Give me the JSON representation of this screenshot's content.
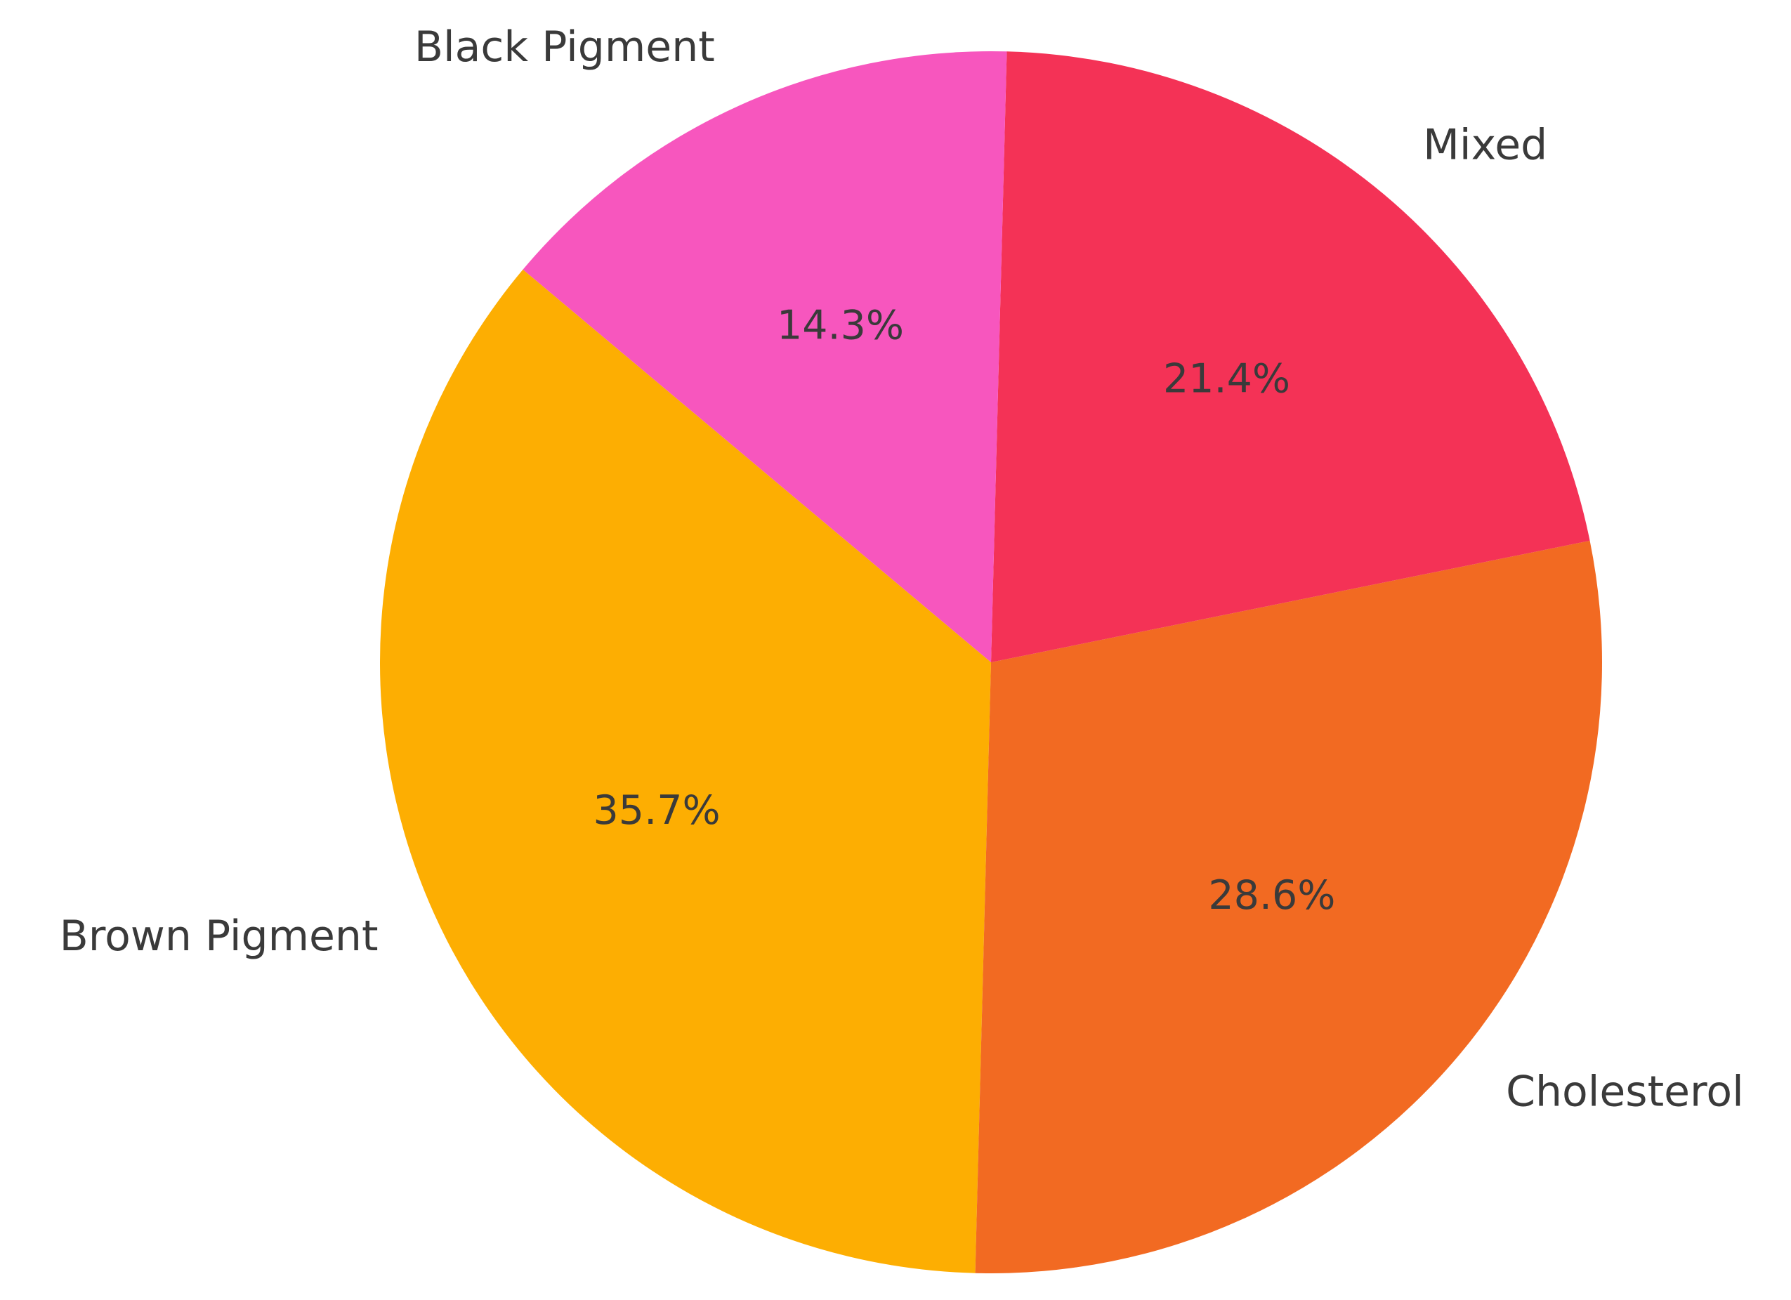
{
  "chart_data": {
    "type": "pie",
    "categories": [
      "Brown Pigment",
      "Cholesterol",
      "Mixed",
      "Black Pigment"
    ],
    "values": [
      35.7,
      28.6,
      21.4,
      14.3
    ],
    "value_labels": [
      "35.7%",
      "28.6%",
      "21.4%",
      "14.3%"
    ],
    "colors": [
      "#fdae02",
      "#f26a22",
      "#f43256",
      "#f756be"
    ]
  }
}
